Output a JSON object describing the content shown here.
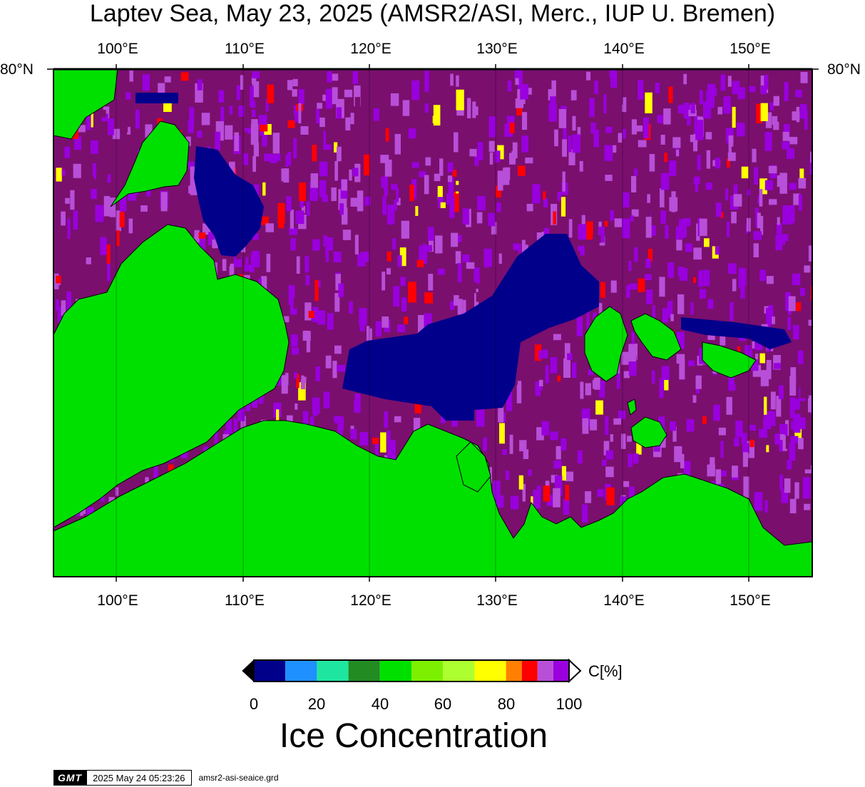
{
  "title": "Laptev Sea, May 23, 2025 (AMSR2/ASI, Merc., IUP U. Bremen)",
  "map": {
    "projection": "Mercator",
    "lon_labels_top": [
      "100°E",
      "110°E",
      "120°E",
      "130°E",
      "140°E",
      "150°E"
    ],
    "lon_labels_bottom": [
      "100°E",
      "110°E",
      "120°E",
      "130°E",
      "140°E",
      "150°E"
    ],
    "lat_label_left": "80°N",
    "lat_label_right": "80°N",
    "lon_range": [
      95,
      155
    ],
    "land_color": "#00e000",
    "coast_color": "#000000"
  },
  "colorbar": {
    "title": "Ice Concentration",
    "unit": "C[%]",
    "tick_labels": [
      "0",
      "20",
      "40",
      "60",
      "80",
      "100"
    ],
    "range": [
      0,
      100
    ],
    "classes": [
      {
        "from": 0,
        "to": 10,
        "color": "#00008b"
      },
      {
        "from": 10,
        "to": 20,
        "color": "#1e90ff"
      },
      {
        "from": 20,
        "to": 30,
        "color": "#1ee6a0"
      },
      {
        "from": 30,
        "to": 40,
        "color": "#228b22"
      },
      {
        "from": 40,
        "to": 50,
        "color": "#00e000"
      },
      {
        "from": 50,
        "to": 60,
        "color": "#7cf000"
      },
      {
        "from": 60,
        "to": 70,
        "color": "#adff2f"
      },
      {
        "from": 70,
        "to": 80,
        "color": "#ffff00"
      },
      {
        "from": 80,
        "to": 85,
        "color": "#ff8000"
      },
      {
        "from": 85,
        "to": 90,
        "color": "#ff0000"
      },
      {
        "from": 90,
        "to": 95,
        "color": "#b84fd8"
      },
      {
        "from": 95,
        "to": 100,
        "color": "#9900dd"
      }
    ],
    "above_color": "#ffffff",
    "below_color": "#000000"
  },
  "colors": {
    "open_water": "#00008b",
    "ice_100": "#7a0f6e",
    "ice_mid": "#9900dd",
    "ice_90": "#b84fd8",
    "ice_85": "#ff0000",
    "ice_80": "#ffff00",
    "land": "#00e000"
  },
  "footer": {
    "logo": "GMT",
    "timestamp": "2025 May 24 05:23:26",
    "file": "amsr2-asi-seaice.grd"
  }
}
